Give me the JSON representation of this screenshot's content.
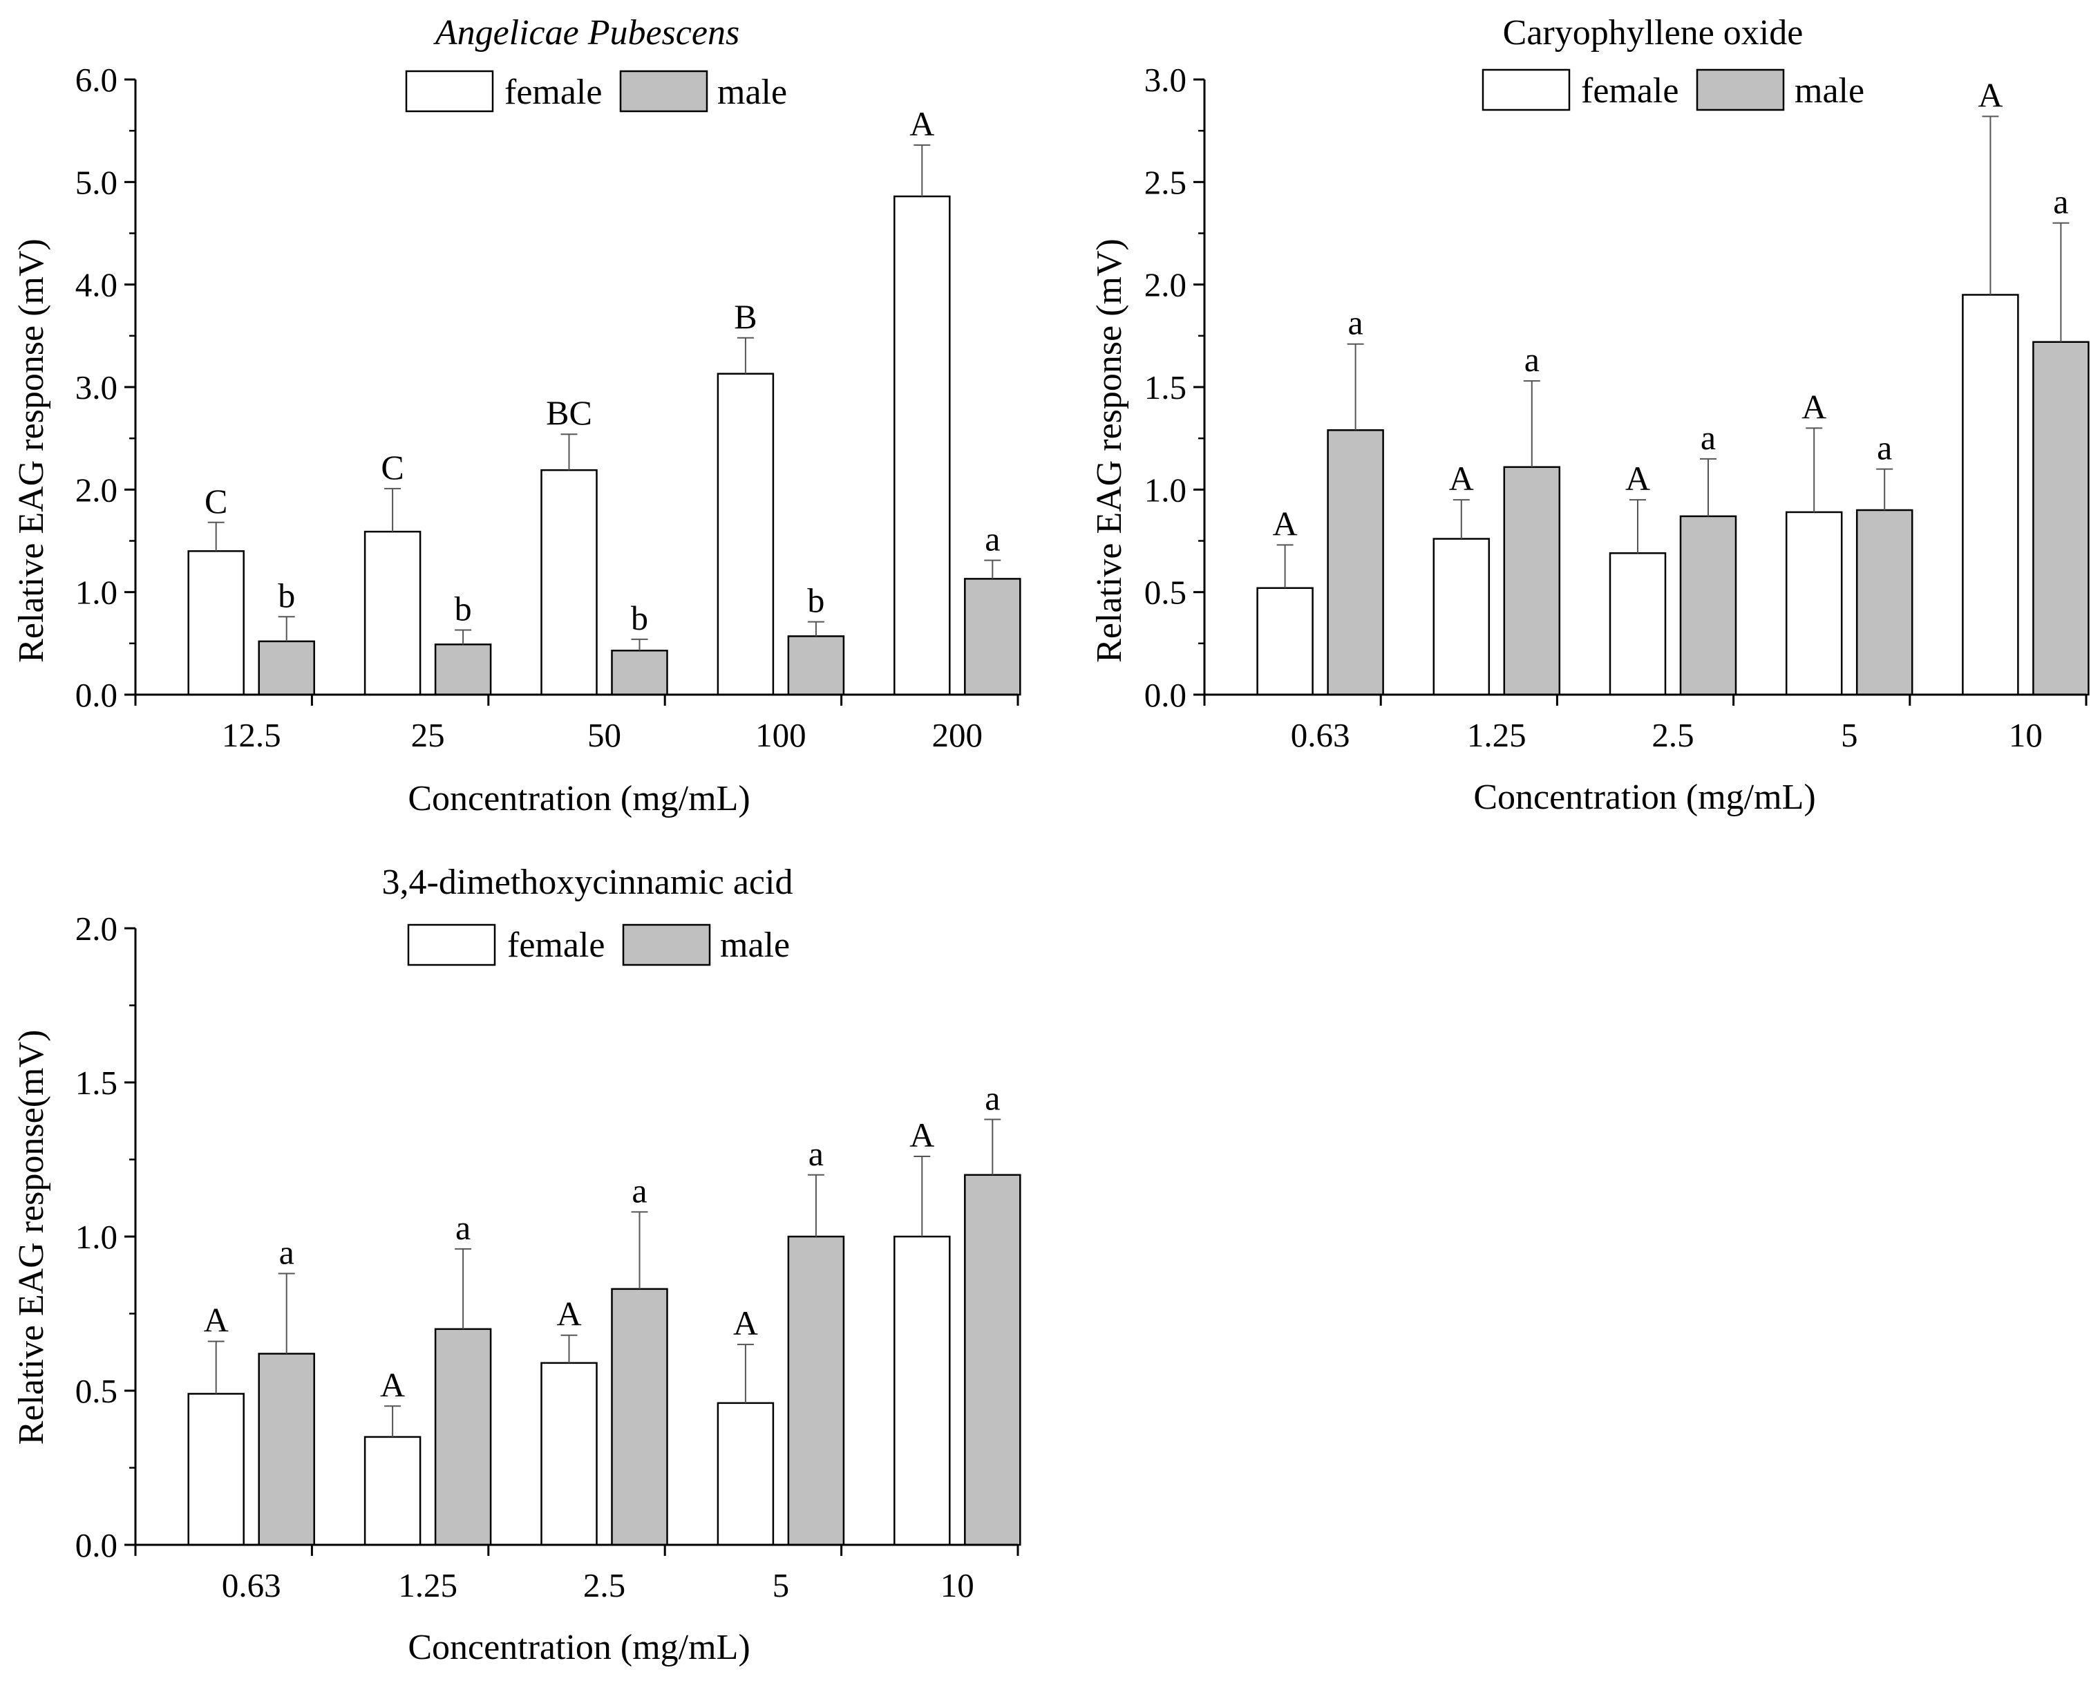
{
  "figure": {
    "legend": {
      "female": "female",
      "male": "male"
    },
    "colors": {
      "female": "#ffffff",
      "male": "#c0c0c0",
      "stroke": "#000000"
    }
  },
  "chart_data": [
    {
      "type": "bar",
      "title": "Angelicae Pubescens",
      "title_style": "italic",
      "xlabel": "Concentration (mg/mL)",
      "ylabel": "Relative EAG response (mV)",
      "ylim": [
        0,
        6
      ],
      "yticks": [
        "0.0",
        "1.0",
        "2.0",
        "3.0",
        "4.0",
        "5.0",
        "6.0"
      ],
      "categories": [
        "12.5",
        "25",
        "50",
        "100",
        "200"
      ],
      "series": [
        {
          "name": "female",
          "values": [
            1.4,
            1.59,
            2.19,
            3.13,
            4.86
          ],
          "errors": [
            0.28,
            0.42,
            0.35,
            0.35,
            0.5
          ],
          "letters": [
            "C",
            "C",
            "BC",
            "B",
            "A"
          ]
        },
        {
          "name": "male",
          "values": [
            0.52,
            0.49,
            0.43,
            0.57,
            1.13
          ],
          "errors": [
            0.24,
            0.14,
            0.11,
            0.14,
            0.18
          ],
          "letters": [
            "b",
            "b",
            "b",
            "b",
            "a"
          ]
        }
      ]
    },
    {
      "type": "bar",
      "title": "Caryophyllene oxide",
      "title_style": "normal",
      "xlabel": "Concentration (mg/mL)",
      "ylabel": "Relative EAG response (mV)",
      "ylim": [
        0,
        3
      ],
      "yticks": [
        "0.0",
        "0.5",
        "1.0",
        "1.5",
        "2.0",
        "2.5",
        "3.0"
      ],
      "categories": [
        "0.63",
        "1.25",
        "2.5",
        "5",
        "10"
      ],
      "series": [
        {
          "name": "female",
          "values": [
            0.52,
            0.76,
            0.69,
            0.89,
            1.95
          ],
          "errors": [
            0.21,
            0.19,
            0.26,
            0.41,
            0.87
          ],
          "letters": [
            "A",
            "A",
            "A",
            "A",
            "A"
          ]
        },
        {
          "name": "male",
          "values": [
            1.29,
            1.11,
            0.87,
            0.9,
            1.72
          ],
          "errors": [
            0.42,
            0.42,
            0.28,
            0.2,
            0.58
          ],
          "letters": [
            "a",
            "a",
            "a",
            "a",
            "a"
          ]
        }
      ]
    },
    {
      "type": "bar",
      "title": "3,4-dimethoxycinnamic acid",
      "title_style": "normal",
      "xlabel": "Concentration (mg/mL)",
      "ylabel": "Relative EAG response(mV)",
      "ylim": [
        0,
        2
      ],
      "yticks": [
        "0.0",
        "0.5",
        "1.0",
        "1.5",
        "2.0"
      ],
      "categories": [
        "0.63",
        "1.25",
        "2.5",
        "5",
        "10"
      ],
      "series": [
        {
          "name": "female",
          "values": [
            0.49,
            0.35,
            0.59,
            0.46,
            1.0
          ],
          "errors": [
            0.17,
            0.1,
            0.09,
            0.19,
            0.26
          ],
          "letters": [
            "A",
            "A",
            "A",
            "A",
            "A"
          ]
        },
        {
          "name": "male",
          "values": [
            0.62,
            0.7,
            0.83,
            1.0,
            1.2
          ],
          "errors": [
            0.26,
            0.26,
            0.25,
            0.2,
            0.18
          ],
          "letters": [
            "a",
            "a",
            "a",
            "a",
            "a"
          ]
        }
      ]
    }
  ]
}
